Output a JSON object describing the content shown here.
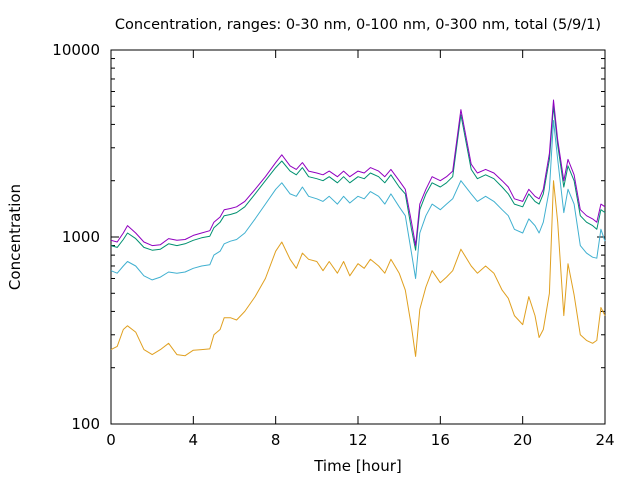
{
  "chart_data": {
    "type": "line",
    "title": "Concentration, ranges: 0-30 nm, 0-100 nm, 0-300 nm, total (5/9/1)",
    "xlabel": "Time [hour]",
    "ylabel": "Concentration",
    "xlim": [
      0,
      24
    ],
    "ylim": [
      100,
      10000
    ],
    "y_scale": "log",
    "x_ticks": [
      0,
      4,
      8,
      12,
      16,
      20,
      24
    ],
    "x_tick_labels": [
      "0",
      "4",
      "8",
      "12",
      "16",
      "20",
      "24"
    ],
    "y_ticks": [
      100,
      1000,
      10000
    ],
    "y_tick_labels": [
      "100",
      "1000",
      "10000"
    ],
    "grid": false,
    "legend": "none",
    "series": [
      {
        "color": "#e0a020",
        "x": [
          0,
          0.3,
          0.6,
          0.8,
          1.2,
          1.6,
          2.0,
          2.4,
          2.8,
          3.2,
          3.6,
          4.0,
          4.4,
          4.8,
          5.0,
          5.3,
          5.5,
          5.8,
          6.1,
          6.5,
          7.0,
          7.5,
          8.0,
          8.3,
          8.7,
          9.0,
          9.3,
          9.6,
          10.0,
          10.3,
          10.6,
          11.0,
          11.3,
          11.6,
          12.0,
          12.3,
          12.6,
          13.0,
          13.3,
          13.6,
          14.0,
          14.3,
          14.6,
          14.8,
          15.0,
          15.3,
          15.6,
          16.0,
          16.3,
          16.6,
          17.0,
          17.5,
          17.8,
          18.2,
          18.6,
          19.0,
          19.3,
          19.6,
          20.0,
          20.3,
          20.6,
          20.8,
          21.0,
          21.3,
          21.5,
          21.7,
          22.0,
          22.2,
          22.5,
          22.8,
          23.1,
          23.4,
          23.6,
          23.8,
          24.0
        ],
        "values": [
          250,
          260,
          320,
          335,
          310,
          250,
          235,
          250,
          270,
          235,
          232,
          248,
          250,
          252,
          300,
          320,
          370,
          370,
          360,
          400,
          480,
          600,
          840,
          940,
          760,
          680,
          820,
          760,
          740,
          660,
          740,
          640,
          740,
          620,
          720,
          680,
          760,
          700,
          640,
          760,
          640,
          520,
          330,
          230,
          410,
          540,
          660,
          570,
          610,
          660,
          860,
          700,
          640,
          700,
          640,
          520,
          470,
          380,
          340,
          480,
          380,
          290,
          320,
          500,
          2000,
          1200,
          380,
          720,
          490,
          300,
          280,
          270,
          280,
          420,
          380
        ]
      },
      {
        "color": "#40b0d0",
        "x": [
          0,
          0.3,
          0.6,
          0.8,
          1.2,
          1.6,
          2.0,
          2.4,
          2.8,
          3.2,
          3.6,
          4.0,
          4.4,
          4.8,
          5.0,
          5.3,
          5.5,
          5.8,
          6.1,
          6.5,
          7.0,
          7.5,
          8.0,
          8.3,
          8.7,
          9.0,
          9.3,
          9.6,
          10.0,
          10.3,
          10.6,
          11.0,
          11.3,
          11.6,
          12.0,
          12.3,
          12.6,
          13.0,
          13.3,
          13.6,
          14.0,
          14.3,
          14.6,
          14.8,
          15.0,
          15.3,
          15.6,
          16.0,
          16.3,
          16.6,
          17.0,
          17.5,
          17.8,
          18.2,
          18.6,
          19.0,
          19.3,
          19.6,
          20.0,
          20.3,
          20.6,
          20.8,
          21.0,
          21.3,
          21.5,
          21.7,
          22.0,
          22.2,
          22.5,
          22.8,
          23.1,
          23.4,
          23.6,
          23.8,
          24.0
        ],
        "values": [
          660,
          640,
          700,
          740,
          700,
          620,
          590,
          610,
          650,
          640,
          650,
          680,
          700,
          710,
          800,
          840,
          920,
          950,
          970,
          1050,
          1250,
          1500,
          1800,
          1950,
          1700,
          1650,
          1850,
          1650,
          1600,
          1550,
          1650,
          1500,
          1650,
          1520,
          1650,
          1600,
          1750,
          1650,
          1500,
          1700,
          1450,
          1300,
          820,
          600,
          1050,
          1300,
          1500,
          1400,
          1500,
          1600,
          2000,
          1700,
          1550,
          1650,
          1550,
          1400,
          1300,
          1100,
          1050,
          1250,
          1150,
          1050,
          1200,
          1800,
          4200,
          2600,
          1350,
          1800,
          1500,
          900,
          820,
          780,
          770,
          1100,
          950
        ]
      },
      {
        "color": "#009070",
        "x": [
          0,
          0.3,
          0.6,
          0.8,
          1.2,
          1.6,
          2.0,
          2.4,
          2.8,
          3.2,
          3.6,
          4.0,
          4.4,
          4.8,
          5.0,
          5.3,
          5.5,
          5.8,
          6.1,
          6.5,
          7.0,
          7.5,
          8.0,
          8.3,
          8.7,
          9.0,
          9.3,
          9.6,
          10.0,
          10.3,
          10.6,
          11.0,
          11.3,
          11.6,
          12.0,
          12.3,
          12.6,
          13.0,
          13.3,
          13.6,
          14.0,
          14.3,
          14.6,
          14.8,
          15.0,
          15.3,
          15.6,
          16.0,
          16.3,
          16.6,
          17.0,
          17.5,
          17.8,
          18.2,
          18.6,
          19.0,
          19.3,
          19.6,
          20.0,
          20.3,
          20.6,
          20.8,
          21.0,
          21.3,
          21.5,
          21.7,
          22.0,
          22.2,
          22.5,
          22.8,
          23.1,
          23.4,
          23.6,
          23.8,
          24.0
        ],
        "values": [
          900,
          880,
          970,
          1050,
          980,
          880,
          850,
          860,
          920,
          900,
          920,
          960,
          990,
          1010,
          1120,
          1200,
          1300,
          1320,
          1350,
          1450,
          1700,
          2000,
          2350,
          2550,
          2250,
          2150,
          2350,
          2100,
          2050,
          2000,
          2100,
          1950,
          2100,
          1950,
          2100,
          2050,
          2200,
          2100,
          1950,
          2150,
          1850,
          1700,
          1100,
          850,
          1400,
          1700,
          1950,
          1850,
          1950,
          2100,
          4500,
          2300,
          2050,
          2150,
          2050,
          1850,
          1700,
          1500,
          1450,
          1700,
          1550,
          1500,
          1700,
          2600,
          5000,
          3100,
          1850,
          2400,
          2000,
          1300,
          1200,
          1150,
          1100,
          1400,
          1350
        ]
      },
      {
        "color": "#9000c0",
        "x": [
          0,
          0.3,
          0.6,
          0.8,
          1.2,
          1.6,
          2.0,
          2.4,
          2.8,
          3.2,
          3.6,
          4.0,
          4.4,
          4.8,
          5.0,
          5.3,
          5.5,
          5.8,
          6.1,
          6.5,
          7.0,
          7.5,
          8.0,
          8.3,
          8.7,
          9.0,
          9.3,
          9.6,
          10.0,
          10.3,
          10.6,
          11.0,
          11.3,
          11.6,
          12.0,
          12.3,
          12.6,
          13.0,
          13.3,
          13.6,
          14.0,
          14.3,
          14.6,
          14.8,
          15.0,
          15.3,
          15.6,
          16.0,
          16.3,
          16.6,
          17.0,
          17.5,
          17.8,
          18.2,
          18.6,
          19.0,
          19.3,
          19.6,
          20.0,
          20.3,
          20.6,
          20.8,
          21.0,
          21.3,
          21.5,
          21.7,
          22.0,
          22.2,
          22.5,
          22.8,
          23.1,
          23.4,
          23.6,
          23.8,
          24.0
        ],
        "values": [
          960,
          940,
          1050,
          1150,
          1050,
          940,
          900,
          910,
          980,
          960,
          970,
          1020,
          1050,
          1080,
          1200,
          1280,
          1400,
          1420,
          1450,
          1550,
          1800,
          2100,
          2500,
          2750,
          2400,
          2300,
          2500,
          2250,
          2200,
          2150,
          2250,
          2100,
          2250,
          2100,
          2250,
          2200,
          2350,
          2250,
          2100,
          2300,
          2000,
          1800,
          1200,
          900,
          1500,
          1800,
          2100,
          2000,
          2100,
          2250,
          4800,
          2450,
          2200,
          2300,
          2200,
          2000,
          1850,
          1600,
          1550,
          1800,
          1650,
          1600,
          1800,
          2800,
          5400,
          3300,
          2000,
          2600,
          2150,
          1400,
          1300,
          1250,
          1200,
          1500,
          1450
        ]
      }
    ]
  }
}
